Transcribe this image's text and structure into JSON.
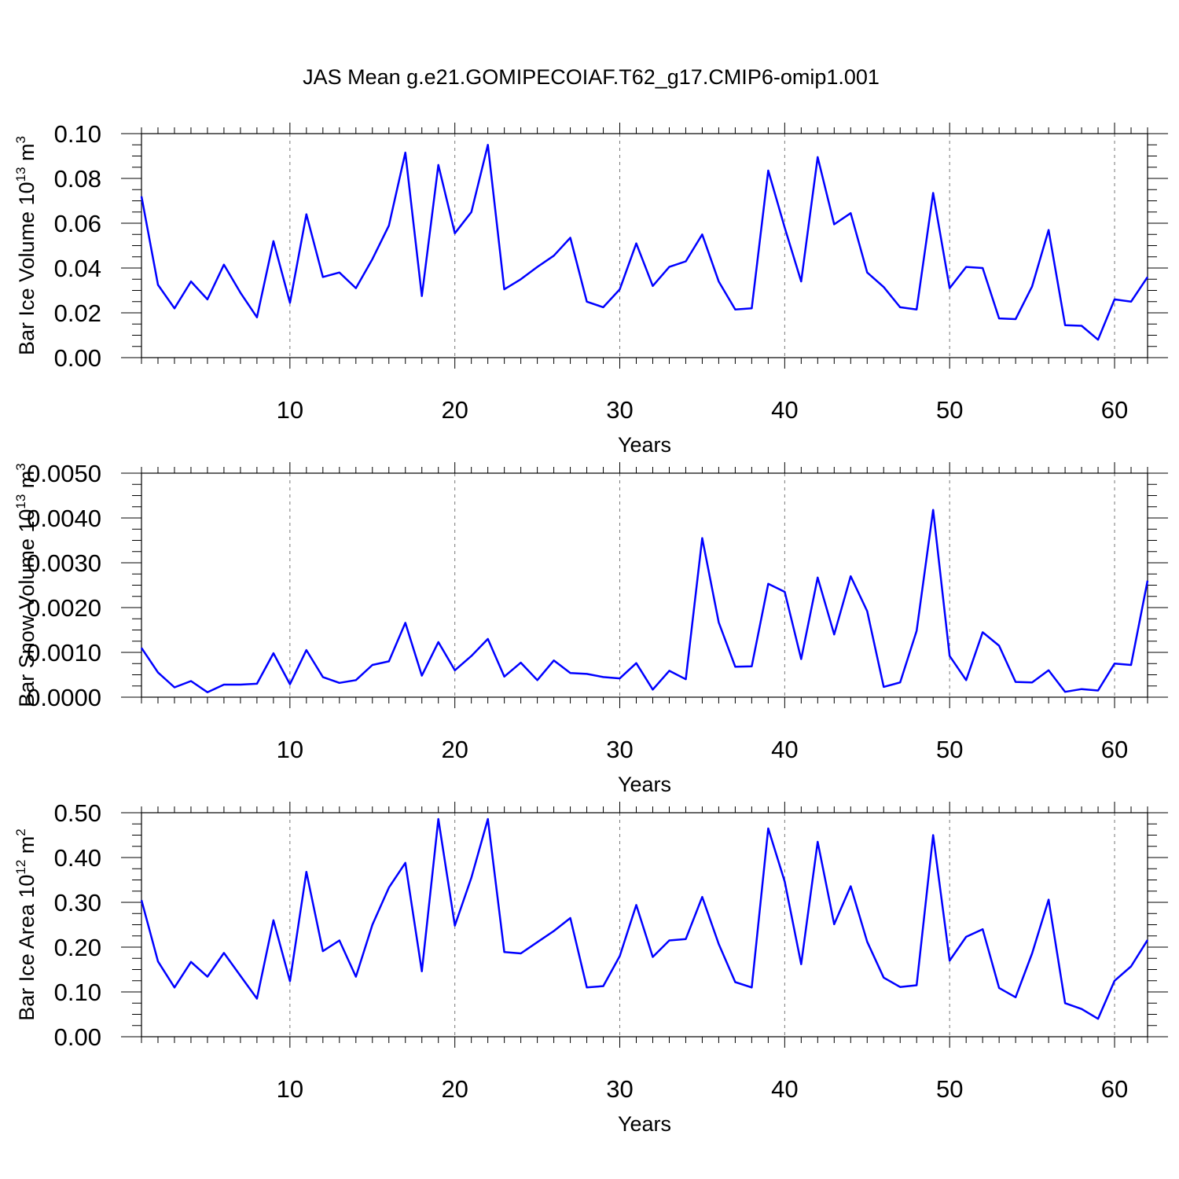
{
  "figure": {
    "title": "JAS Mean g.e21.GOMIPECOIAF.T62_g17.CMIP6-omip1.001"
  },
  "chart_data": [
    {
      "type": "line",
      "ylabel": "Bar Ice Volume 10",
      "ylabel_exp": "13",
      "ylabel_unit": " m",
      "ylabel_unit_exp": "3",
      "xlabel": "Years",
      "xlim": [
        1,
        62
      ],
      "ylim": [
        0,
        0.1
      ],
      "xticks": [
        10,
        20,
        30,
        40,
        50,
        60
      ],
      "xtick_labels": [
        "10",
        "20",
        "30",
        "40",
        "50",
        "60"
      ],
      "yticks": [
        0,
        0.02,
        0.04,
        0.06,
        0.08,
        0.1
      ],
      "ytick_labels": [
        "0.00",
        "0.02",
        "0.04",
        "0.06",
        "0.08",
        "0.10"
      ],
      "grid": "vertical dashed at major x ticks",
      "series_color": "#0000ff",
      "y": [
        0.072,
        0.0325,
        0.022,
        0.034,
        0.026,
        0.0415,
        0.029,
        0.018,
        0.052,
        0.0245,
        0.064,
        0.036,
        0.038,
        0.031,
        0.044,
        0.059,
        0.0915,
        0.0275,
        0.086,
        0.0555,
        0.065,
        0.095,
        0.0305,
        0.035,
        0.0405,
        0.0455,
        0.0535,
        0.025,
        0.0225,
        0.0305,
        0.051,
        0.032,
        0.0405,
        0.043,
        0.055,
        0.034,
        0.0215,
        0.022,
        0.0835,
        0.058,
        0.034,
        0.0895,
        0.0595,
        0.0645,
        0.038,
        0.0315,
        0.0225,
        0.0215,
        0.0735,
        0.031,
        0.0405,
        0.04,
        0.0175,
        0.0172,
        0.0318,
        0.057,
        0.0145,
        0.0142,
        0.008,
        0.026,
        0.025,
        0.036
      ]
    },
    {
      "type": "line",
      "ylabel": "Bar Snow Volume 10",
      "ylabel_exp": "13",
      "ylabel_unit": " m",
      "ylabel_unit_exp": "3",
      "xlabel": "Years",
      "xlim": [
        1,
        62
      ],
      "ylim": [
        0,
        0.005
      ],
      "xticks": [
        10,
        20,
        30,
        40,
        50,
        60
      ],
      "xtick_labels": [
        "10",
        "20",
        "30",
        "40",
        "50",
        "60"
      ],
      "yticks": [
        0,
        0.001,
        0.002,
        0.003,
        0.004,
        0.005
      ],
      "ytick_labels": [
        "0.0000",
        "0.0010",
        "0.0020",
        "0.0030",
        "0.0040",
        "0.0050"
      ],
      "grid": "vertical dashed at major x ticks",
      "series_color": "#0000ff",
      "y": [
        0.0011,
        0.00055,
        0.00022,
        0.00036,
        0.00011,
        0.00028,
        0.00028,
        0.0003,
        0.00098,
        0.00029,
        0.00105,
        0.00045,
        0.00032,
        0.00038,
        0.00072,
        0.0008,
        0.00166,
        0.00048,
        0.00123,
        0.0006,
        0.00092,
        0.0013,
        0.00046,
        0.00077,
        0.00038,
        0.00082,
        0.00054,
        0.00052,
        0.00045,
        0.00042,
        0.00076,
        0.00017,
        0.00059,
        0.0004,
        0.00355,
        0.00167,
        0.00068,
        0.00069,
        0.00253,
        0.00235,
        0.00085,
        0.00267,
        0.0014,
        0.0027,
        0.00192,
        0.00023,
        0.00033,
        0.00148,
        0.00418,
        0.00092,
        0.00038,
        0.00145,
        0.00115,
        0.00034,
        0.00033,
        0.0006,
        0.00012,
        0.00018,
        0.00015,
        0.00075,
        0.00072,
        0.0026
      ]
    },
    {
      "type": "line",
      "ylabel": "Bar Ice Area 10",
      "ylabel_exp": "12",
      "ylabel_unit": " m",
      "ylabel_unit_exp": "2",
      "xlabel": "Years",
      "xlim": [
        1,
        62
      ],
      "ylim": [
        0,
        0.5
      ],
      "xticks": [
        10,
        20,
        30,
        40,
        50,
        60
      ],
      "xtick_labels": [
        "10",
        "20",
        "30",
        "40",
        "50",
        "60"
      ],
      "yticks": [
        0,
        0.1,
        0.2,
        0.3,
        0.4,
        0.5
      ],
      "ytick_labels": [
        "0.00",
        "0.10",
        "0.20",
        "0.30",
        "0.40",
        "0.50"
      ],
      "grid": "vertical dashed at major x ticks",
      "series_color": "#0000ff",
      "y": [
        0.305,
        0.168,
        0.11,
        0.167,
        0.134,
        0.187,
        0.136,
        0.085,
        0.26,
        0.124,
        0.368,
        0.191,
        0.215,
        0.134,
        0.25,
        0.333,
        0.388,
        0.146,
        0.486,
        0.248,
        0.355,
        0.486,
        0.189,
        0.186,
        0.211,
        0.236,
        0.265,
        0.11,
        0.113,
        0.18,
        0.294,
        0.178,
        0.215,
        0.218,
        0.312,
        0.207,
        0.122,
        0.11,
        0.465,
        0.346,
        0.162,
        0.435,
        0.251,
        0.336,
        0.212,
        0.132,
        0.111,
        0.115,
        0.45,
        0.17,
        0.223,
        0.24,
        0.109,
        0.088,
        0.186,
        0.306,
        0.075,
        0.062,
        0.04,
        0.125,
        0.157,
        0.216
      ]
    }
  ]
}
